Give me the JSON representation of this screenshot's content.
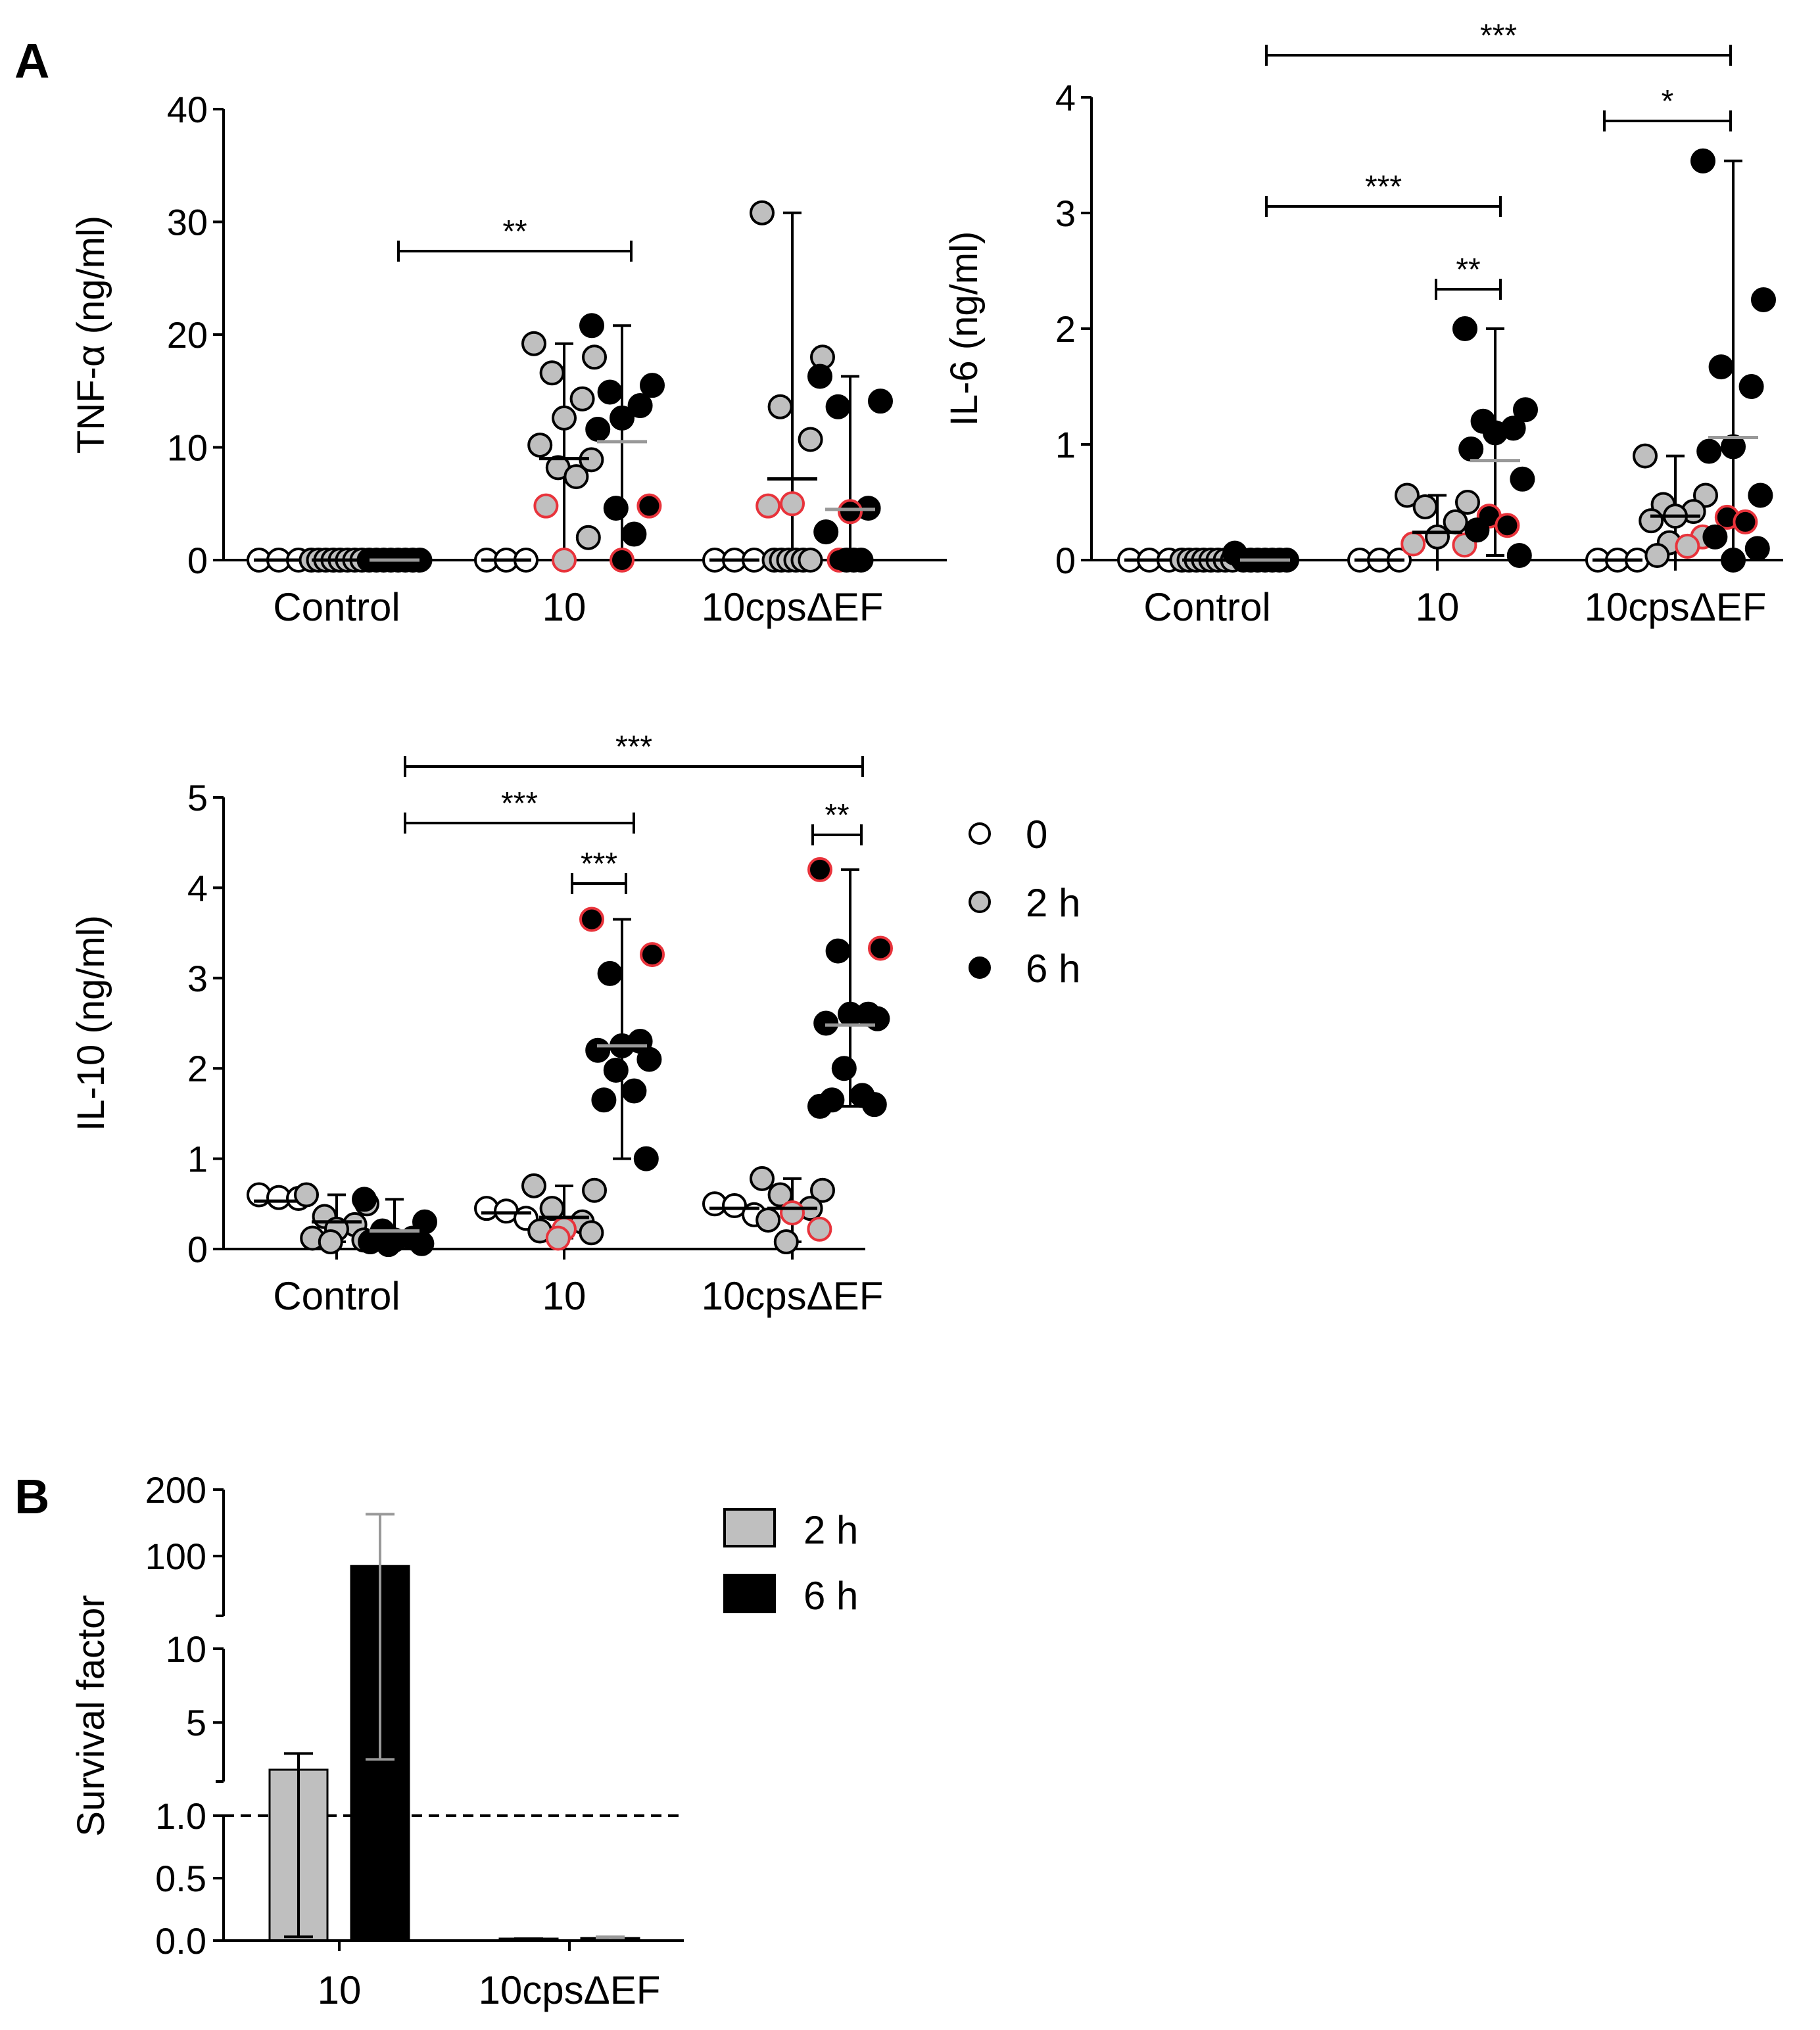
{
  "figure": {
    "panel_a_label": "A",
    "panel_b_label": "B"
  },
  "chart_data": [
    {
      "id": "tnf",
      "type": "scatter",
      "title": "",
      "ylabel": "TNF-α (ng/ml)",
      "ylim": [
        0,
        40
      ],
      "yticks": [
        "0",
        "10",
        "20",
        "30",
        "40"
      ],
      "categories": [
        "Control",
        "10",
        "10cpsΔEF"
      ],
      "series": [
        {
          "name": "0",
          "color": "#ffffff",
          "values": [
            [
              0,
              0,
              0
            ],
            [
              0,
              0,
              0
            ],
            [
              0,
              0,
              0
            ]
          ],
          "median": [
            0,
            0,
            0
          ]
        },
        {
          "name": "2 h",
          "color": "#bfbfbf",
          "values": [
            [
              0,
              0,
              0,
              0,
              0,
              0,
              0,
              0
            ],
            [
              19.2,
              18,
              16.6,
              14.3,
              12.6,
              10.2,
              8.9,
              8.2,
              7.4,
              4.8,
              2,
              0
            ],
            [
              30.8,
              18,
              13.6,
              10.7,
              5,
              4.8,
              0,
              0,
              0,
              0,
              0,
              0
            ]
          ],
          "highlight_red": [
            [],
            [
              4.8,
              0
            ],
            [
              5,
              4.8
            ]
          ],
          "median": [
            0,
            9,
            7.2
          ],
          "range": [
            [
              0,
              0
            ],
            [
              0,
              19.2
            ],
            [
              0,
              30.8
            ]
          ]
        },
        {
          "name": "6 h",
          "color": "#000000",
          "values": [
            [
              0,
              0,
              0,
              0,
              0,
              0,
              0,
              0
            ],
            [
              20.8,
              15.5,
              14.9,
              13.7,
              12.6,
              11.6,
              4.8,
              4.6,
              2.3,
              0
            ],
            [
              16.3,
              14.1,
              13.6,
              4.6,
              4.3,
              2.5,
              0,
              0,
              0,
              0
            ]
          ],
          "highlight_red": [
            [],
            [
              4.8,
              0
            ],
            [
              4.3,
              0
            ]
          ],
          "median": [
            0,
            10.5,
            4.5
          ],
          "range": [
            [
              0,
              0
            ],
            [
              0,
              20.8
            ],
            [
              0,
              16.3
            ]
          ]
        }
      ],
      "significance": [
        {
          "label": "**",
          "from": "Control 6 h",
          "to": "10 6 h"
        }
      ]
    },
    {
      "id": "il6",
      "type": "scatter",
      "title": "",
      "ylabel": "IL-6 (ng/ml)",
      "ylim": [
        0,
        4
      ],
      "yticks": [
        "0",
        "1",
        "2",
        "3",
        "4"
      ],
      "categories": [
        "Control",
        "10",
        "10cpsΔEF"
      ],
      "series": [
        {
          "name": "0",
          "color": "#ffffff",
          "values": [
            [
              0,
              0,
              0
            ],
            [
              0,
              0,
              0
            ],
            [
              0,
              0,
              0
            ]
          ],
          "median": [
            0,
            0,
            0
          ]
        },
        {
          "name": "2 h",
          "color": "#bfbfbf",
          "values": [
            [
              0,
              0,
              0,
              0,
              0,
              0,
              0,
              0
            ],
            [
              0.56,
              0.5,
              0.46,
              0.33,
              0.2,
              0.14,
              0.13
            ],
            [
              0.9,
              0.56,
              0.48,
              0.42,
              0.38,
              0.34,
              0.2,
              0.15,
              0.12,
              0.04
            ]
          ],
          "highlight_red": [
            [],
            [
              0.14,
              0.13
            ],
            [
              0.2,
              0.12
            ]
          ],
          "median": [
            0,
            0.24,
            0.38
          ],
          "range": [
            [
              0,
              0
            ],
            [
              0,
              0.56
            ],
            [
              0,
              0.9
            ]
          ]
        },
        {
          "name": "6 h",
          "color": "#000000",
          "values": [
            [
              0.06,
              0,
              0,
              0,
              0,
              0,
              0,
              0
            ],
            [
              2,
              1.3,
              1.2,
              1.14,
              1.1,
              0.96,
              0.7,
              0.38,
              0.3,
              0.26,
              0.04
            ],
            [
              3.45,
              2.25,
              1.67,
              1.5,
              0.98,
              0.94,
              0.56,
              0.37,
              0.33,
              0.2,
              0.1,
              0
            ]
          ],
          "highlight_red": [
            [],
            [
              0.38,
              0.3
            ],
            [
              0.37,
              0.33
            ]
          ],
          "median": [
            0,
            0.86,
            1.06
          ],
          "range": [
            [
              0,
              0.06
            ],
            [
              0.04,
              2
            ],
            [
              0,
              3.45
            ]
          ]
        }
      ],
      "significance": [
        {
          "label": "***",
          "from": "Control 6 h",
          "to": "10cpsΔEF 6 h"
        },
        {
          "label": "*",
          "from": "10cpsΔEF 0",
          "to": "10cpsΔEF 6 h"
        },
        {
          "label": "***",
          "from": "Control 6 h",
          "to": "10 6 h"
        },
        {
          "label": "**",
          "from": "10 2 h",
          "to": "10 6 h"
        }
      ]
    },
    {
      "id": "il10",
      "type": "scatter",
      "title": "",
      "ylabel": "IL-10 (ng/ml)",
      "ylim": [
        0,
        5
      ],
      "yticks": [
        "0",
        "1",
        "2",
        "3",
        "4",
        "5"
      ],
      "categories": [
        "Control",
        "10",
        "10cpsΔEF"
      ],
      "series": [
        {
          "name": "0",
          "color": "#ffffff",
          "values": [
            [
              0.6,
              0.57,
              0.56
            ],
            [
              0.45,
              0.42,
              0.34
            ],
            [
              0.5,
              0.48,
              0.38
            ]
          ],
          "median": [
            0.53,
            0.4,
            0.45
          ]
        },
        {
          "name": "2 h",
          "color": "#bfbfbf",
          "values": [
            [
              0.6,
              0.5,
              0.36,
              0.27,
              0.22,
              0.12,
              0.1,
              0.08
            ],
            [
              0.7,
              0.65,
              0.45,
              0.3,
              0.22,
              0.2,
              0.18,
              0.12
            ],
            [
              0.78,
              0.65,
              0.6,
              0.45,
              0.4,
              0.32,
              0.22,
              0.08
            ]
          ],
          "highlight_red": [
            [],
            [
              0.22,
              0.12
            ],
            [
              0.4,
              0.22
            ]
          ],
          "median": [
            0.3,
            0.35,
            0.45
          ],
          "range": [
            [
              0.08,
              0.6
            ],
            [
              0.12,
              0.7
            ],
            [
              0.08,
              0.78
            ]
          ]
        },
        {
          "name": "6 h",
          "color": "#000000",
          "values": [
            [
              0.55,
              0.3,
              0.2,
              0.12,
              0.1,
              0.08,
              0.06,
              0.05
            ],
            [
              3.65,
              3.26,
              3.05,
              2.3,
              2.25,
              2.2,
              2.1,
              1.98,
              1.75,
              1.65,
              1
            ],
            [
              4.2,
              3.33,
              3.3,
              2.6,
              2.6,
              2.5,
              2.55,
              2,
              1.7,
              1.65,
              1.6,
              1.58
            ]
          ],
          "highlight_red": [
            [],
            [
              3.65,
              3.26
            ],
            [
              4.2,
              3.33
            ]
          ],
          "median": [
            0.2,
            2.25,
            2.48
          ],
          "range": [
            [
              0.05,
              0.55
            ],
            [
              1,
              3.65
            ],
            [
              1.58,
              4.2
            ]
          ]
        }
      ],
      "significance": [
        {
          "label": "***",
          "from": "Control 6 h",
          "to": "10cpsΔEF 6 h"
        },
        {
          "label": "***",
          "from": "Control 6 h",
          "to": "10 6 h"
        },
        {
          "label": "***",
          "from": "10 2 h",
          "to": "10 6 h"
        },
        {
          "label": "**",
          "from": "10cpsΔEF 2 h",
          "to": "10cpsΔEF 6 h"
        }
      ]
    },
    {
      "id": "survival",
      "type": "bar",
      "title": "",
      "ylabel": "Survival factor",
      "categories": [
        "10",
        "10cpsΔEF"
      ],
      "axis_segments": [
        {
          "range": [
            0,
            1
          ],
          "ticks": [
            "0.0",
            "0.5",
            "1.0"
          ]
        },
        {
          "range": [
            1,
            10
          ],
          "ticks": [
            "5",
            "10"
          ]
        },
        {
          "range": [
            10,
            200
          ],
          "ticks": [
            "100",
            "200"
          ]
        }
      ],
      "reference_line": 1.0,
      "series": [
        {
          "name": "2 h",
          "color": "#bfbfbf",
          "values": [
            1.8,
            0.01
          ],
          "error_low": [
            0.03,
            0.005
          ],
          "error_high": [
            2.9,
            0.015
          ]
        },
        {
          "name": "6 h",
          "color": "#000000",
          "values": [
            85,
            0.02
          ],
          "error_low": [
            2.5,
            0.01
          ],
          "error_high": [
            163,
            0.03
          ]
        }
      ]
    }
  ],
  "legend_scatter": [
    {
      "label": "0",
      "color": "#ffffff"
    },
    {
      "label": "2 h",
      "color": "#bfbfbf"
    },
    {
      "label": "6 h",
      "color": "#000000"
    }
  ],
  "legend_bar": [
    {
      "label": "2 h",
      "color": "#bfbfbf"
    },
    {
      "label": "6 h",
      "color": "#000000"
    }
  ]
}
